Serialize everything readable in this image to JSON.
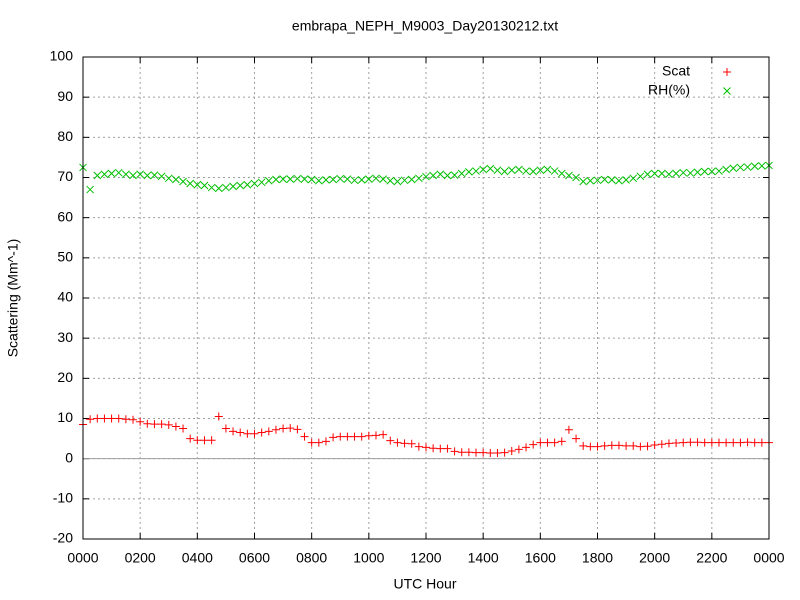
{
  "chart_data": {
    "type": "scatter",
    "title": "embrapa_NEPH_M9003_Day20130212.txt",
    "x_label": "UTC Hour",
    "y_label": "Scattering (Mm^-1)",
    "xlim": [
      0,
      24
    ],
    "xticks": [
      {
        "value": 0,
        "label": "0000"
      },
      {
        "value": 2,
        "label": "0200"
      },
      {
        "value": 4,
        "label": "0400"
      },
      {
        "value": 6,
        "label": "0600"
      },
      {
        "value": 8,
        "label": "0800"
      },
      {
        "value": 10,
        "label": "1000"
      },
      {
        "value": 12,
        "label": "1200"
      },
      {
        "value": 14,
        "label": "1400"
      },
      {
        "value": 16,
        "label": "1600"
      },
      {
        "value": 18,
        "label": "1800"
      },
      {
        "value": 20,
        "label": "2000"
      },
      {
        "value": 22,
        "label": "2200"
      },
      {
        "value": 24,
        "label": "0000"
      }
    ],
    "ylim": [
      -20,
      100
    ],
    "yticks": [
      -20,
      -10,
      0,
      10,
      20,
      30,
      40,
      50,
      60,
      70,
      80,
      90,
      100
    ],
    "grid": true,
    "legend": "top-right",
    "x": [
      0,
      0.25,
      0.5,
      0.75,
      1,
      1.25,
      1.5,
      1.75,
      2,
      2.25,
      2.5,
      2.75,
      3,
      3.25,
      3.5,
      3.75,
      4,
      4.25,
      4.5,
      4.75,
      5,
      5.25,
      5.5,
      5.75,
      6,
      6.25,
      6.5,
      6.75,
      7,
      7.25,
      7.5,
      7.75,
      8,
      8.25,
      8.5,
      8.75,
      9,
      9.25,
      9.5,
      9.75,
      10,
      10.25,
      10.5,
      10.75,
      11,
      11.25,
      11.5,
      11.75,
      12,
      12.25,
      12.5,
      12.75,
      13,
      13.25,
      13.5,
      13.75,
      14,
      14.25,
      14.5,
      14.75,
      15,
      15.25,
      15.5,
      15.75,
      16,
      16.25,
      16.5,
      16.75,
      17,
      17.25,
      17.5,
      17.75,
      18,
      18.25,
      18.5,
      18.75,
      19,
      19.25,
      19.5,
      19.75,
      20,
      20.25,
      20.5,
      20.75,
      21,
      21.25,
      21.5,
      21.75,
      22,
      22.25,
      22.5,
      22.75,
      23,
      23.25,
      23.5,
      23.75,
      24
    ],
    "series": [
      {
        "name": "Scat",
        "color": "#ff0000",
        "marker": "plus",
        "values": [
          8.5,
          9.8,
          10,
          10,
          10,
          10,
          9.8,
          9.7,
          9.2,
          8.7,
          8.6,
          8.6,
          8.4,
          8,
          7.5,
          5,
          4.6,
          4.6,
          4.6,
          10.5,
          7.5,
          6.8,
          6.5,
          6.2,
          6.2,
          6.5,
          6.8,
          7.2,
          7.5,
          7.6,
          7.3,
          5.5,
          4,
          4,
          4.3,
          5.3,
          5.5,
          5.5,
          5.5,
          5.5,
          5.7,
          5.8,
          6,
          4.5,
          4,
          3.8,
          3.7,
          3,
          2.8,
          2.6,
          2.5,
          2.5,
          1.8,
          1.6,
          1.6,
          1.5,
          1.5,
          1.4,
          1.4,
          1.5,
          1.9,
          2.3,
          2.8,
          3.5,
          4,
          4,
          4,
          4.3,
          7.2,
          5,
          3.2,
          3,
          3,
          3.2,
          3.3,
          3.3,
          3.2,
          3.2,
          3,
          3.1,
          3.4,
          3.6,
          3.8,
          3.9,
          4,
          4.1,
          4.1,
          4,
          4,
          4,
          4,
          4,
          4,
          4.1,
          4,
          4,
          4
        ]
      },
      {
        "name": "RH(%)",
        "color": "#00c000",
        "marker": "cross",
        "values": [
          72.5,
          67,
          70.5,
          70.8,
          71,
          71.2,
          70.8,
          70.5,
          70.8,
          70.5,
          70.6,
          70.3,
          69.8,
          69.5,
          69,
          68.5,
          68.2,
          68,
          67.5,
          67.3,
          67.5,
          67.8,
          68,
          68.2,
          68.5,
          68.8,
          69.2,
          69.5,
          69.6,
          69.6,
          69.7,
          69.6,
          69.5,
          69.2,
          69.4,
          69.5,
          69.7,
          69.6,
          69.3,
          69.4,
          69.6,
          69.8,
          69.6,
          69.2,
          69,
          69.3,
          69.5,
          69.8,
          70.2,
          70.5,
          70.8,
          70.5,
          70.6,
          71,
          71.4,
          71.6,
          72,
          72.2,
          71.8,
          71.5,
          71.8,
          72,
          71.6,
          71.5,
          71.8,
          72,
          71.6,
          71,
          70.5,
          70,
          69,
          69.2,
          69.3,
          69.5,
          69.4,
          69.2,
          69.4,
          69.8,
          70.3,
          70.8,
          71,
          71,
          70.8,
          71,
          71.2,
          71.1,
          71.3,
          71.5,
          71.5,
          71.6,
          72,
          72.3,
          72.5,
          72.6,
          72.8,
          72.9,
          73
        ]
      }
    ]
  }
}
